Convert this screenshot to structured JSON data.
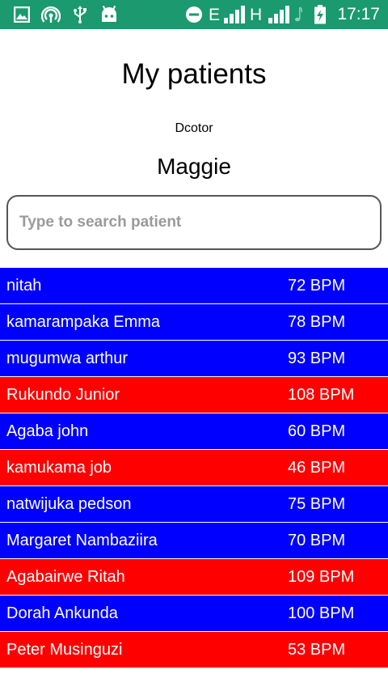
{
  "status_bar": {
    "network_letter_1": "E",
    "network_letter_2": "H",
    "time": "17:17",
    "background_color": "#1a9a6e",
    "icons": [
      "image-icon",
      "hotspot-icon",
      "usb-icon",
      "android-icon",
      "do-not-disturb-icon",
      "signal-icon",
      "signal-icon",
      "music-note-icon",
      "battery-charging-icon"
    ]
  },
  "header": {
    "title": "My patients",
    "doctor_label": "Dcotor",
    "doctor_name": "Maggie"
  },
  "search": {
    "placeholder": "Type to search patient",
    "value": ""
  },
  "colors": {
    "normal_row": "#0000ff",
    "alert_row": "#ff0000"
  },
  "patients": [
    {
      "name": "nitah",
      "bpm": "72 BPM",
      "status": "normal"
    },
    {
      "name": "kamarampaka Emma",
      "bpm": "78 BPM",
      "status": "normal"
    },
    {
      "name": "mugumwa arthur",
      "bpm": "93 BPM",
      "status": "normal"
    },
    {
      "name": "Rukundo Junior",
      "bpm": "108 BPM",
      "status": "alert"
    },
    {
      "name": "Agaba john",
      "bpm": "60 BPM",
      "status": "normal"
    },
    {
      "name": "kamukama job",
      "bpm": "46 BPM",
      "status": "alert"
    },
    {
      "name": "natwijuka pedson",
      "bpm": "75 BPM",
      "status": "normal"
    },
    {
      "name": "Margaret Nambaziira",
      "bpm": "70 BPM",
      "status": "normal"
    },
    {
      "name": "Agabairwe Ritah",
      "bpm": "109 BPM",
      "status": "alert"
    },
    {
      "name": "Dorah Ankunda",
      "bpm": "100 BPM",
      "status": "normal"
    },
    {
      "name": "Peter Musinguzi",
      "bpm": "53 BPM",
      "status": "alert"
    }
  ]
}
